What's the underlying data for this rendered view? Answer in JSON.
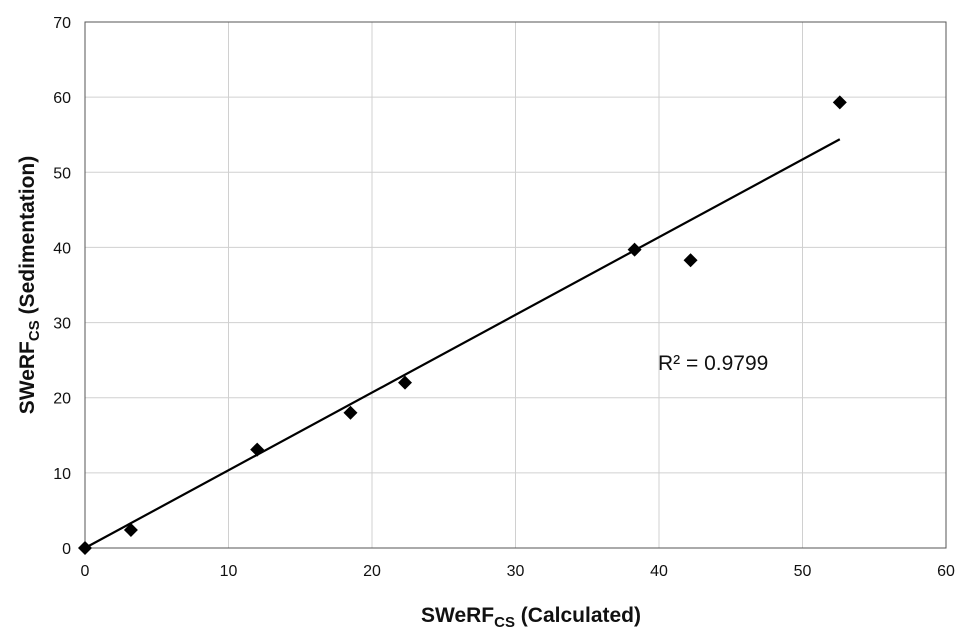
{
  "chart_data": {
    "type": "scatter",
    "xlabel": {
      "main": "SWeRF",
      "sub": "CS",
      "suffix": " (Calculated)"
    },
    "ylabel": {
      "main": "SWeRF",
      "sub": "CS",
      "suffix": " (Sedimentation)"
    },
    "xlim": [
      0,
      60
    ],
    "ylim": [
      0,
      70
    ],
    "xticks": [
      "0",
      "10",
      "20",
      "30",
      "40",
      "50",
      "60"
    ],
    "yticks": [
      "0",
      "10",
      "20",
      "30",
      "40",
      "50",
      "60",
      "70"
    ],
    "grid": true,
    "points": [
      {
        "x": 0,
        "y": 0
      },
      {
        "x": 3.2,
        "y": 2.4
      },
      {
        "x": 12.0,
        "y": 13.1
      },
      {
        "x": 18.5,
        "y": 18.0
      },
      {
        "x": 22.3,
        "y": 22.0
      },
      {
        "x": 38.3,
        "y": 39.7
      },
      {
        "x": 42.2,
        "y": 38.3
      },
      {
        "x": 52.6,
        "y": 59.3
      }
    ],
    "trendline": {
      "x": [
        0,
        52.6
      ],
      "y": [
        0,
        54.4
      ]
    },
    "annotation": "R² = 0.9799",
    "marker": "diamond",
    "colors": {
      "marker": "#000000",
      "line": "#000000",
      "grid": "#d0d0d0"
    }
  }
}
